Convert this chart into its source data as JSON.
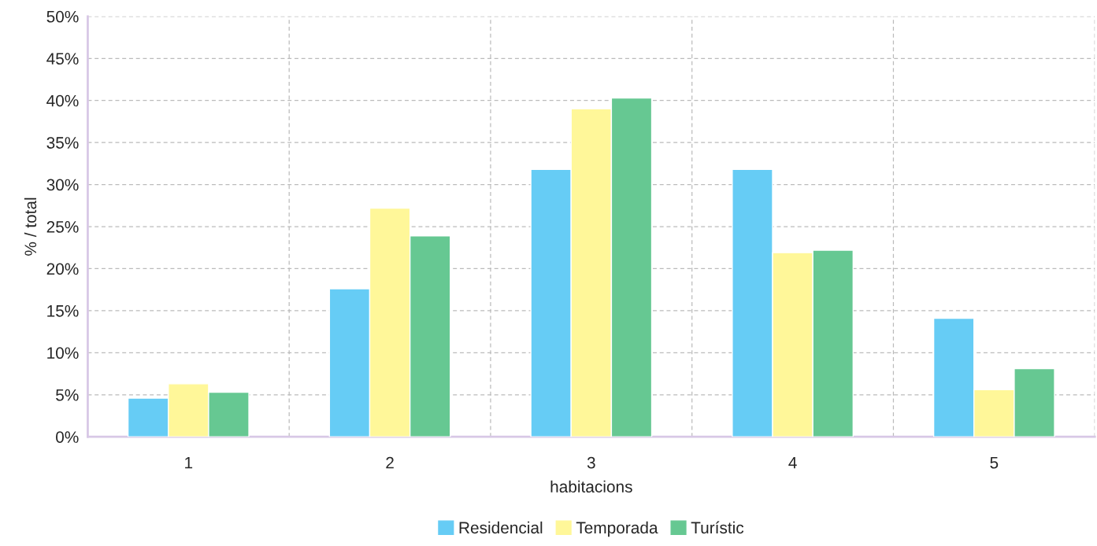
{
  "chart_data": {
    "type": "bar",
    "xlabel": "habitacions",
    "ylabel": "% / total",
    "categories": [
      "1",
      "2",
      "3",
      "4",
      "5"
    ],
    "series": [
      {
        "name": "Residencial",
        "color": "#66ccf5",
        "values": [
          4.6,
          17.6,
          31.8,
          31.8,
          14.1
        ]
      },
      {
        "name": "Temporada",
        "color": "#fff799",
        "values": [
          6.3,
          27.2,
          39.0,
          21.9,
          5.6
        ]
      },
      {
        "name": "Turístic",
        "color": "#66c892",
        "values": [
          5.3,
          23.9,
          40.3,
          22.2,
          8.1
        ]
      }
    ],
    "ylim": [
      0,
      50
    ],
    "yticks": [
      {
        "value": 0,
        "label": "0%"
      },
      {
        "value": 5,
        "label": "5%"
      },
      {
        "value": 10,
        "label": "10%"
      },
      {
        "value": 15,
        "label": "15%"
      },
      {
        "value": 20,
        "label": "20%"
      },
      {
        "value": 25,
        "label": "25%"
      },
      {
        "value": 30,
        "label": "30%"
      },
      {
        "value": 35,
        "label": "35%"
      },
      {
        "value": 40,
        "label": "40%"
      },
      {
        "value": 45,
        "label": "45%"
      },
      {
        "value": 50,
        "label": "50%"
      }
    ],
    "grid": true,
    "legend": "bottom"
  }
}
